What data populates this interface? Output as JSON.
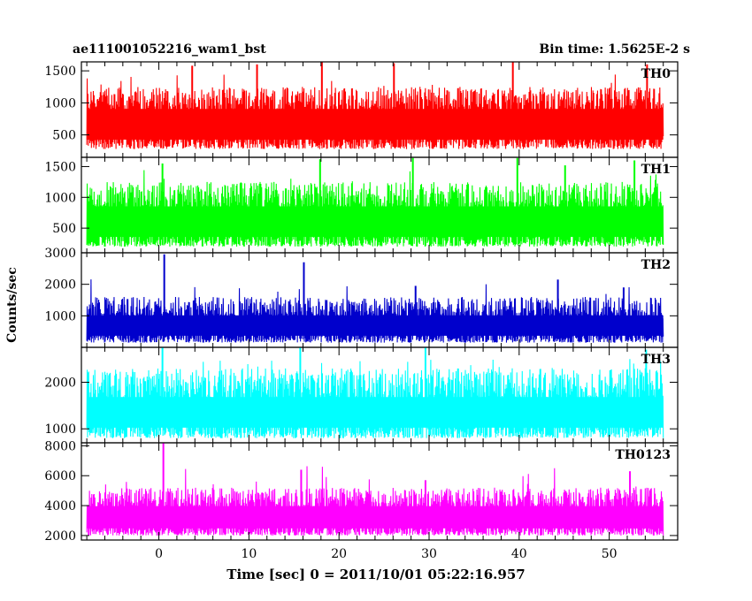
{
  "header": {
    "left_title": "ae111001052216_wam1_bst",
    "right_title": "Bin time: 1.5625E-2 s"
  },
  "chart_data": {
    "type": "line",
    "xlabel": "Time [sec] 0 = 2011/10/01 05:22:16.957",
    "ylabel": "Counts/sec",
    "xlim": [
      -8.6,
      57.6
    ],
    "x_range": [
      -8,
      56
    ],
    "x_ticks": [
      0,
      10,
      20,
      30,
      40,
      50
    ],
    "x_tick_labels": [
      "0",
      "10",
      "20",
      "30",
      "40",
      "50"
    ],
    "grid": false,
    "panels": [
      {
        "name": "TH0",
        "color": "#ff0000",
        "ylim": [
          150,
          1640
        ],
        "yticks": [
          500,
          1000,
          1500
        ],
        "ytick_labels": [
          "500",
          "1000",
          "1500"
        ],
        "baseline": 720,
        "typical_low": 280,
        "typical_high": 1250,
        "peak": 1640,
        "spikes": [
          [
            3.7,
            1580
          ],
          [
            10.9,
            1600
          ],
          [
            18.1,
            1640
          ],
          [
            26.1,
            1620
          ],
          [
            39.3,
            1640
          ],
          [
            54.2,
            1600
          ]
        ]
      },
      {
        "name": "TH1",
        "color": "#00ff00",
        "ylim": [
          100,
          1650
        ],
        "yticks": [
          500,
          1000,
          1500
        ],
        "ytick_labels": [
          "500",
          "1000",
          "1500"
        ],
        "baseline": 640,
        "typical_low": 200,
        "typical_high": 1250,
        "peak": 1650,
        "spikes": [
          [
            0.4,
            1550
          ],
          [
            17.9,
            1620
          ],
          [
            28.2,
            1640
          ],
          [
            39.8,
            1640
          ],
          [
            45.1,
            1520
          ],
          [
            52.8,
            1600
          ]
        ]
      },
      {
        "name": "TH2",
        "color": "#0000cc",
        "ylim": [
          0,
          3000
        ],
        "yticks": [
          1000,
          2000,
          3000
        ],
        "ytick_labels": [
          "1000",
          "2000",
          "3000"
        ],
        "baseline": 700,
        "typical_low": 150,
        "typical_high": 1600,
        "peak": 2950,
        "spikes": [
          [
            0.6,
            2950
          ],
          [
            16.1,
            2700
          ],
          [
            44.3,
            2150
          ],
          [
            28.5,
            1950
          ],
          [
            51.6,
            1900
          ]
        ]
      },
      {
        "name": "TH3",
        "color": "#00ffff",
        "ylim": [
          700,
          2750
        ],
        "yticks": [
          1000,
          2000
        ],
        "ytick_labels": [
          "1000",
          "2000"
        ],
        "baseline": 1350,
        "typical_low": 800,
        "typical_high": 2300,
        "peak": 2750,
        "spikes": [
          [
            0.4,
            2750
          ],
          [
            15.7,
            2750
          ],
          [
            29.6,
            2750
          ],
          [
            54.1,
            2700
          ]
        ]
      },
      {
        "name": "TH0123",
        "color": "#ff00ff",
        "ylim": [
          1700,
          8200
        ],
        "yticks": [
          2000,
          4000,
          6000,
          8000
        ],
        "ytick_labels": [
          "2000",
          "4000",
          "6000",
          "8000"
        ],
        "baseline": 3300,
        "typical_low": 2000,
        "typical_high": 5200,
        "peak": 8200,
        "spikes": [
          [
            0.5,
            8200
          ],
          [
            15.8,
            6400
          ],
          [
            52.3,
            6300
          ],
          [
            29.6,
            5700
          ]
        ]
      }
    ]
  }
}
